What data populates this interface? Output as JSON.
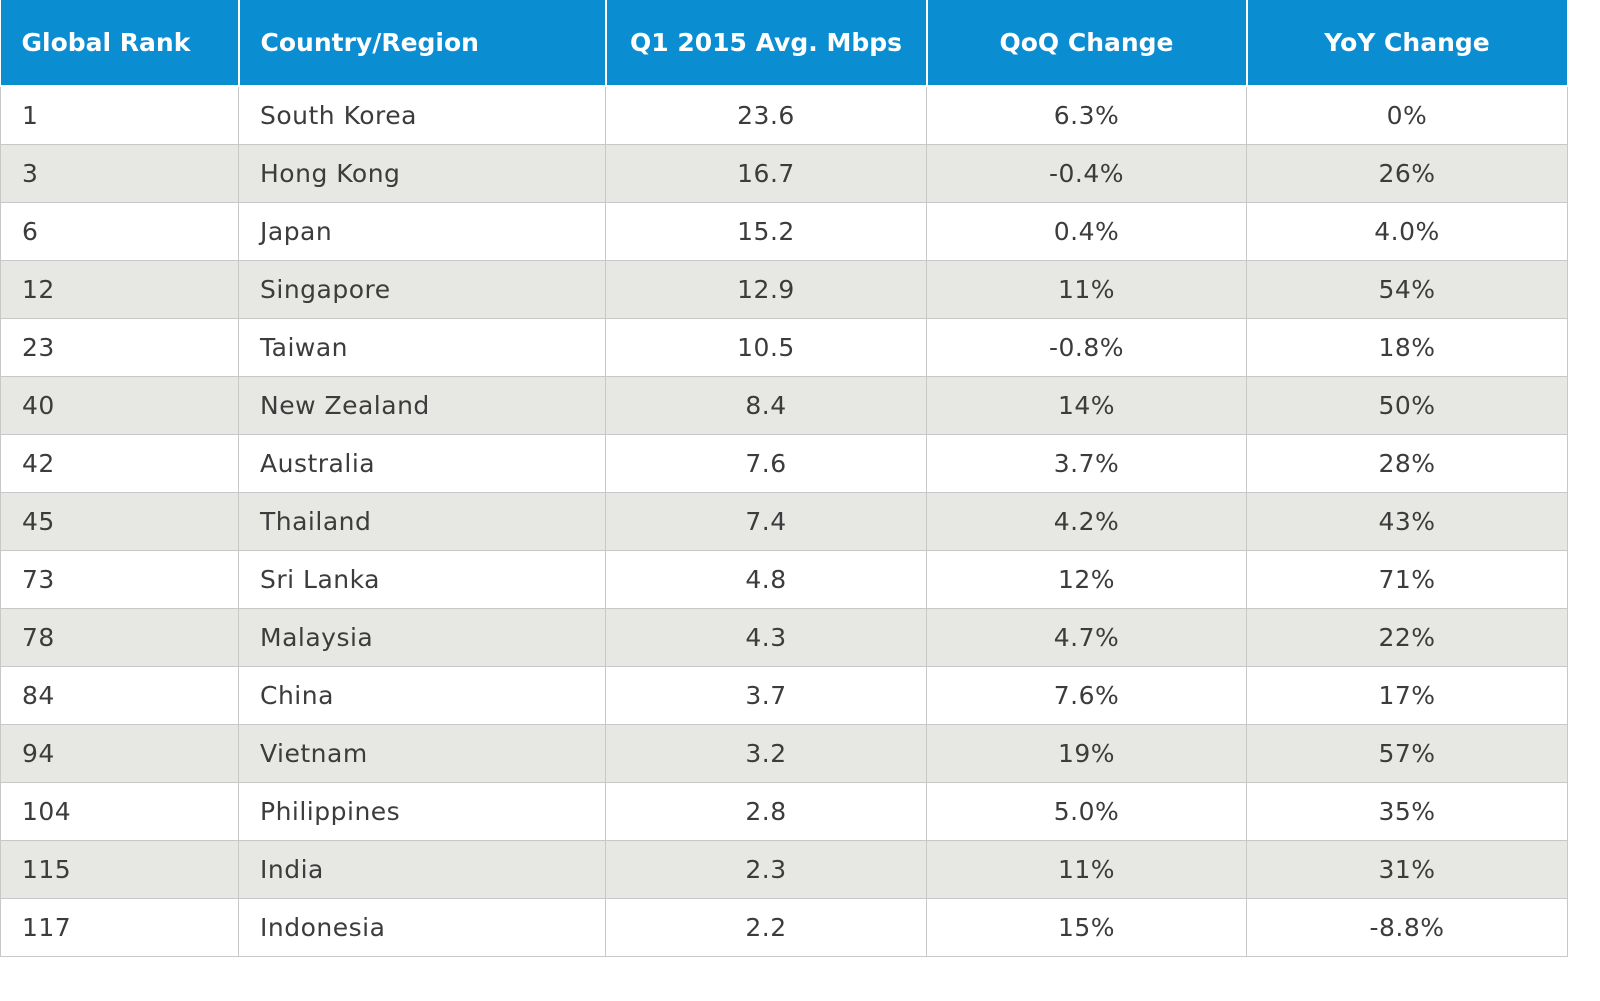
{
  "chart_data": {
    "type": "table",
    "columns": [
      "Global Rank",
      "Country/Region",
      "Q1 2015 Avg. Mbps",
      "QoQ Change",
      "YoY Change"
    ],
    "rows": [
      [
        "1",
        "South Korea",
        "23.6",
        "6.3%",
        "0%"
      ],
      [
        "3",
        "Hong Kong",
        "16.7",
        "-0.4%",
        "26%"
      ],
      [
        "6",
        "Japan",
        "15.2",
        "0.4%",
        "4.0%"
      ],
      [
        "12",
        "Singapore",
        "12.9",
        "11%",
        "54%"
      ],
      [
        "23",
        "Taiwan",
        "10.5",
        "-0.8%",
        "18%"
      ],
      [
        "40",
        "New Zealand",
        "8.4",
        "14%",
        "50%"
      ],
      [
        "42",
        "Australia",
        "7.6",
        "3.7%",
        "28%"
      ],
      [
        "45",
        "Thailand",
        "7.4",
        "4.2%",
        "43%"
      ],
      [
        "73",
        "Sri Lanka",
        "4.8",
        "12%",
        "71%"
      ],
      [
        "78",
        "Malaysia",
        "4.3",
        "4.7%",
        "22%"
      ],
      [
        "84",
        "China",
        "3.7",
        "7.6%",
        "17%"
      ],
      [
        "94",
        "Vietnam",
        "3.2",
        "19%",
        "57%"
      ],
      [
        "104",
        "Philippines",
        "2.8",
        "5.0%",
        "35%"
      ],
      [
        "115",
        "India",
        "2.3",
        "11%",
        "31%"
      ],
      [
        "117",
        "Indonesia",
        "2.2",
        "15%",
        "-8.8%"
      ]
    ],
    "colors": {
      "header_bg": "#0a8dd1",
      "header_text": "#ffffff",
      "row_alt_bg": "#e7e7e4",
      "row_bg": "#ffffff",
      "text": "#3c3c3c",
      "border": "#c8c8c8"
    }
  }
}
